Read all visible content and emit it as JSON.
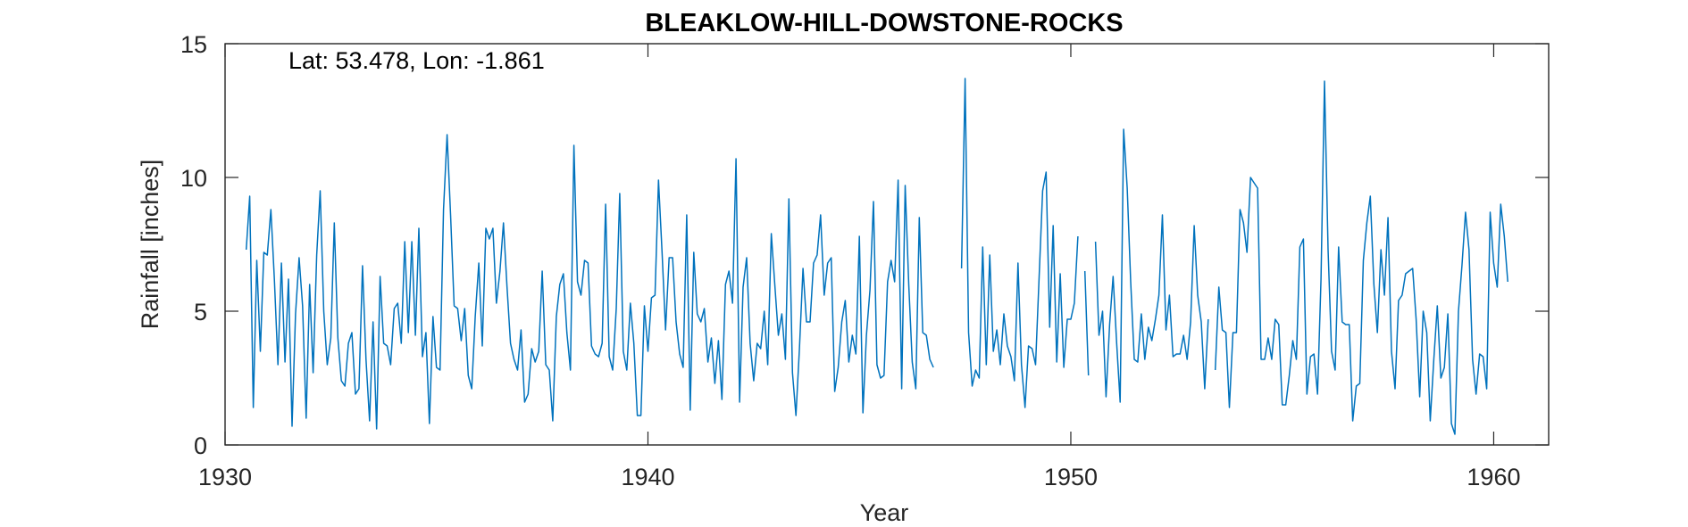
{
  "chart_data": {
    "type": "line",
    "title": "BLEAKLOW-HILL-DOWSTONE-ROCKS",
    "annotation": "Lat: 53.478, Lon: -1.861",
    "xlabel": "Year",
    "ylabel": "Rainfall [inches]",
    "xlim": [
      1930,
      1961.3
    ],
    "ylim": [
      0,
      15
    ],
    "xticks": [
      1930,
      1940,
      1950,
      1960
    ],
    "yticks": [
      0,
      5,
      10,
      15
    ],
    "grid": false,
    "color": "#0072BD",
    "series": [
      {
        "x_start": 1930.5,
        "step": 0.083333,
        "values": [
          7.3,
          9.3,
          1.4,
          6.9,
          3.5,
          7.2,
          7.1,
          8.8,
          6.2,
          3.0,
          6.8,
          3.1,
          6.2,
          0.7,
          4.9,
          7.0,
          5.2,
          1.0,
          6.0,
          2.7,
          7.1,
          9.5,
          5.0,
          3.0,
          4.0,
          8.3,
          4.0,
          2.4,
          2.2,
          3.8,
          4.2,
          1.9,
          2.1,
          6.7,
          3.2,
          0.9,
          4.6,
          0.6,
          6.3,
          3.8,
          3.7,
          3.0,
          5.1,
          5.3,
          3.8,
          7.6,
          4.2,
          7.6,
          4.1,
          8.1,
          3.3,
          4.2,
          0.8,
          4.8,
          2.9,
          2.8,
          8.8,
          11.6,
          8.6,
          5.2,
          5.1,
          3.9,
          5.1,
          2.6,
          2.1,
          4.8,
          6.8,
          3.7,
          8.1,
          7.7,
          8.1,
          5.3,
          6.5,
          8.3,
          5.9,
          3.8,
          3.2,
          2.8,
          4.3,
          1.6,
          1.9,
          3.6,
          3.1,
          3.5,
          6.5,
          3.0,
          2.8,
          0.9,
          4.8,
          6.0,
          6.4,
          4.2,
          2.8,
          11.2,
          6.1,
          5.6,
          6.9,
          6.8,
          3.7,
          3.4,
          3.3,
          3.8,
          9.0,
          3.3,
          2.8,
          5.1,
          9.4,
          3.5,
          2.8,
          5.3,
          3.8,
          1.1,
          1.1,
          5.2,
          3.5,
          5.5,
          5.6,
          9.9,
          7.2,
          4.3,
          7.0,
          7.0,
          4.6,
          3.4,
          2.9,
          8.6,
          1.3,
          7.2,
          4.9,
          4.6,
          5.1,
          3.1,
          4.0,
          2.3,
          3.9,
          1.7,
          6.0,
          6.5,
          5.3,
          10.7,
          1.6,
          5.9,
          7.0,
          3.8,
          2.4,
          3.8,
          3.6,
          5.0,
          3.0,
          7.9,
          6.0,
          4.1,
          4.9,
          3.2,
          9.2,
          2.7,
          1.1,
          3.6,
          6.6,
          4.6,
          4.6,
          6.8,
          7.1,
          8.6,
          5.6,
          6.8,
          7.0,
          2.0,
          2.9,
          4.6,
          5.4,
          3.1,
          4.1,
          3.4,
          7.8,
          1.2,
          4.1,
          5.8,
          9.1,
          3.0,
          2.5,
          2.6,
          6.1,
          6.9,
          6.1,
          9.9,
          2.1,
          9.7,
          6.0,
          3.1,
          2.1,
          8.5,
          4.2,
          4.1,
          3.2,
          2.9,
          null,
          null,
          null,
          null,
          null,
          null,
          null,
          6.6,
          13.7,
          4.2,
          2.2,
          2.8,
          2.5,
          7.4,
          3.0,
          7.1,
          3.5,
          4.3,
          3.0,
          4.9,
          3.7,
          3.3,
          2.4,
          6.8,
          3.0,
          1.4,
          3.7,
          3.6,
          3.0,
          6.3,
          9.5,
          10.2,
          4.4,
          8.2,
          3.1,
          6.4,
          2.9,
          4.7,
          4.7,
          5.3,
          7.8,
          null,
          6.5,
          2.6,
          null,
          7.6,
          4.1,
          5.0,
          1.8,
          4.5,
          6.3,
          3.8,
          1.6,
          11.8,
          9.6,
          6.1,
          3.2,
          3.1,
          4.9,
          3.2,
          4.4,
          3.9,
          4.7,
          5.6,
          8.6,
          4.3,
          5.6,
          3.3,
          3.4,
          3.4,
          4.1,
          3.2,
          4.6,
          8.2,
          5.6,
          4.6,
          2.1,
          4.7,
          null,
          2.8,
          5.9,
          4.3,
          4.2,
          1.4,
          4.2,
          4.2,
          8.8,
          8.3,
          7.2,
          10.0,
          9.8,
          9.6,
          3.2,
          3.2,
          4.0,
          3.2,
          4.7,
          4.5,
          1.5,
          1.5,
          2.6,
          3.9,
          3.2,
          7.4,
          7.7,
          1.9,
          3.3,
          3.4,
          1.9,
          6.2,
          13.6,
          7.3,
          3.5,
          2.8,
          7.4,
          4.6,
          4.5,
          4.5,
          0.9,
          2.2,
          2.3,
          6.9,
          8.3,
          9.3,
          6.0,
          4.2,
          7.3,
          5.6,
          8.5,
          3.5,
          2.1,
          5.4,
          5.6,
          6.4,
          6.5,
          6.6,
          4.7,
          1.8,
          5.0,
          4.2,
          0.9,
          3.2,
          5.2,
          2.5,
          2.9,
          4.9,
          0.8,
          0.4,
          5.0,
          6.7,
          8.7,
          7.3,
          3.2,
          1.9,
          3.4,
          3.3,
          2.1,
          8.7,
          6.8,
          5.9,
          9.0,
          7.8,
          6.1
        ]
      }
    ]
  }
}
